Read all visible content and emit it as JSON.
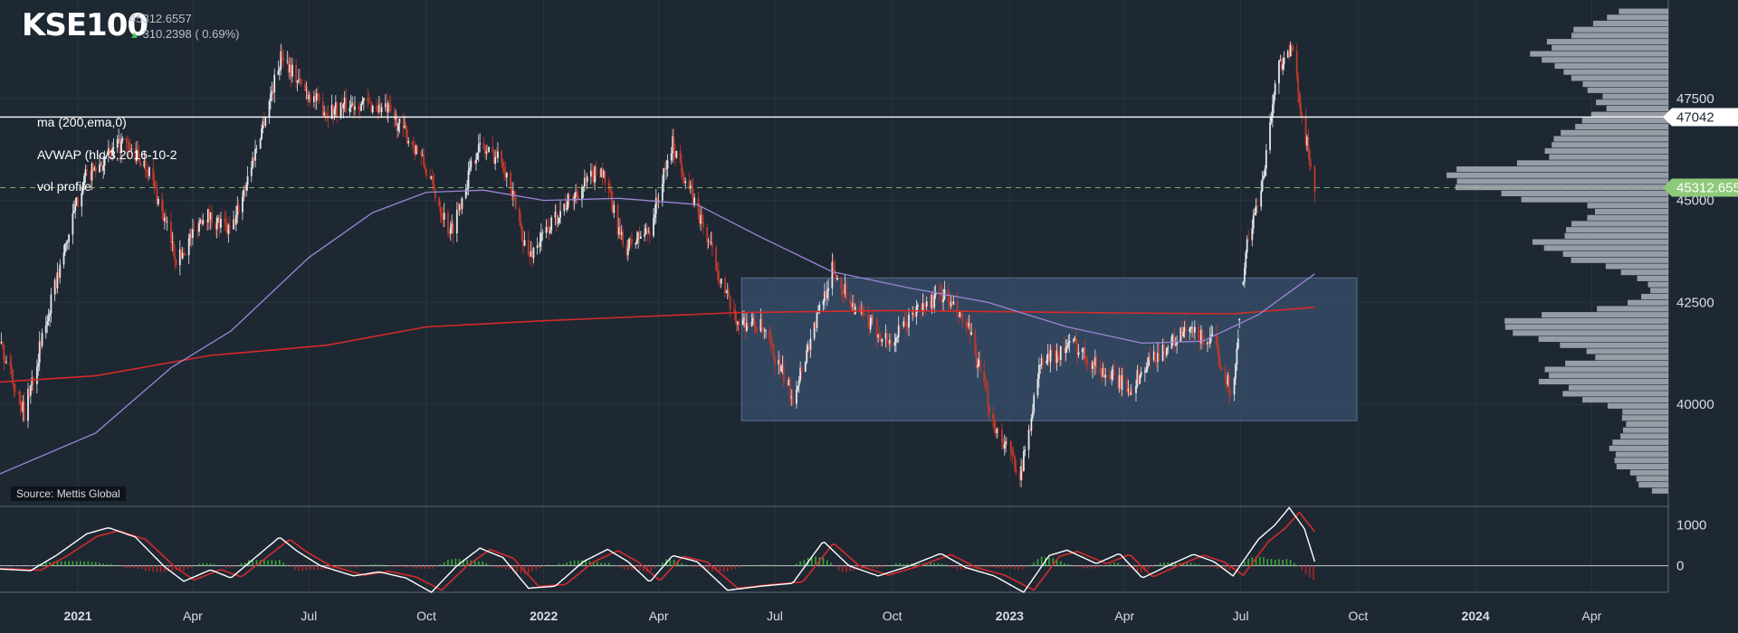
{
  "header": {
    "symbol": "KSE100",
    "last": "45312.6557",
    "change": "310.2398 ( 0.69%)",
    "up_color": "#3fc45a"
  },
  "indicators": [
    "ma (200,ema,0)",
    "AVWAP (hlc/3,2016-10-2",
    "vol profile"
  ],
  "source": "Source: Mettis Global",
  "colors": {
    "background": "#1e2833",
    "ma_line": "#d42a2a",
    "avwap_line": "#9b86d6",
    "candle_up": "#e4e8ec",
    "candle_down": "#c0392b",
    "box_fill": "#3a4f6e",
    "price_tag": "#8fc97a"
  },
  "chart_data": {
    "type": "candlestick",
    "x_range": [
      "2020-11-01",
      "2024-05-31"
    ],
    "y_range": [
      37500,
      49800
    ],
    "y_ticks": [
      40000,
      42500,
      45000,
      47500
    ],
    "x_ticks": [
      {
        "label": "2021",
        "date": "2021-01-01",
        "bold": true
      },
      {
        "label": "Apr",
        "date": "2021-04-01"
      },
      {
        "label": "Jul",
        "date": "2021-07-01"
      },
      {
        "label": "Oct",
        "date": "2021-10-01"
      },
      {
        "label": "2022",
        "date": "2022-01-01",
        "bold": true
      },
      {
        "label": "Apr",
        "date": "2022-04-01"
      },
      {
        "label": "Jul",
        "date": "2022-07-01"
      },
      {
        "label": "Oct",
        "date": "2022-10-01"
      },
      {
        "label": "2023",
        "date": "2023-01-01",
        "bold": true
      },
      {
        "label": "Apr",
        "date": "2023-04-01"
      },
      {
        "label": "Jul",
        "date": "2023-07-01"
      },
      {
        "label": "Oct",
        "date": "2023-10-01"
      },
      {
        "label": "2024",
        "date": "2024-01-01",
        "bold": true
      },
      {
        "label": "Apr",
        "date": "2024-04-01"
      }
    ],
    "price_path": [
      [
        "2020-11-01",
        41500
      ],
      [
        "2020-11-20",
        39800
      ],
      [
        "2020-12-15",
        43000
      ],
      [
        "2021-01-05",
        45500
      ],
      [
        "2021-02-05",
        46400
      ],
      [
        "2021-02-25",
        45800
      ],
      [
        "2021-03-20",
        43500
      ],
      [
        "2021-04-10",
        44700
      ],
      [
        "2021-05-01",
        44200
      ],
      [
        "2021-05-20",
        46200
      ],
      [
        "2021-06-10",
        48600
      ],
      [
        "2021-06-25",
        47800
      ],
      [
        "2021-07-15",
        47200
      ],
      [
        "2021-08-10",
        47400
      ],
      [
        "2021-09-01",
        47200
      ],
      [
        "2021-09-25",
        46200
      ],
      [
        "2021-10-20",
        44200
      ],
      [
        "2021-11-10",
        46300
      ],
      [
        "2021-11-30",
        46000
      ],
      [
        "2021-12-20",
        43600
      ],
      [
        "2022-01-15",
        44800
      ],
      [
        "2022-02-15",
        45800
      ],
      [
        "2022-03-05",
        43800
      ],
      [
        "2022-03-25",
        44300
      ],
      [
        "2022-04-12",
        46400
      ],
      [
        "2022-05-10",
        44000
      ],
      [
        "2022-05-30",
        42100
      ],
      [
        "2022-06-20",
        41900
      ],
      [
        "2022-07-15",
        40200
      ],
      [
        "2022-08-15",
        43300
      ],
      [
        "2022-09-05",
        42200
      ],
      [
        "2022-09-30",
        41500
      ],
      [
        "2022-10-20",
        42300
      ],
      [
        "2022-11-10",
        42700
      ],
      [
        "2022-11-30",
        41800
      ],
      [
        "2022-12-20",
        39500
      ],
      [
        "2023-01-10",
        38300
      ],
      [
        "2023-01-25",
        41000
      ],
      [
        "2023-02-20",
        41500
      ],
      [
        "2023-03-15",
        40800
      ],
      [
        "2023-04-05",
        40400
      ],
      [
        "2023-04-25",
        41200
      ],
      [
        "2023-05-20",
        41800
      ],
      [
        "2023-06-10",
        41500
      ],
      [
        "2023-06-25",
        40200
      ],
      [
        "2023-07-05",
        43800
      ],
      [
        "2023-07-18",
        45500
      ],
      [
        "2023-07-30",
        48300
      ],
      [
        "2023-08-10",
        48700
      ],
      [
        "2023-08-20",
        46700
      ],
      [
        "2023-08-28",
        45300
      ]
    ],
    "gap": {
      "start": "2023-06-29",
      "end": "2023-07-03"
    },
    "ma": {
      "label": "ma (200,ema,0)",
      "path": [
        [
          "2020-11-01",
          40550
        ],
        [
          "2021-01-15",
          40700
        ],
        [
          "2021-04-15",
          41200
        ],
        [
          "2021-07-15",
          41450
        ],
        [
          "2021-10-01",
          41900
        ],
        [
          "2022-01-01",
          42050
        ],
        [
          "2022-06-01",
          42250
        ],
        [
          "2022-10-01",
          42300
        ],
        [
          "2023-03-01",
          42250
        ],
        [
          "2023-06-25",
          42220
        ],
        [
          "2023-08-28",
          42380
        ]
      ]
    },
    "avwap": {
      "label": "AVWAP (hlc/3,2016-10-2",
      "path": [
        [
          "2020-11-01",
          38300
        ],
        [
          "2021-01-15",
          39300
        ],
        [
          "2021-03-15",
          40900
        ],
        [
          "2021-05-01",
          41800
        ],
        [
          "2021-07-01",
          43600
        ],
        [
          "2021-08-20",
          44700
        ],
        [
          "2021-10-01",
          45200
        ],
        [
          "2021-11-15",
          45250
        ],
        [
          "2022-01-01",
          45000
        ],
        [
          "2022-03-01",
          45050
        ],
        [
          "2022-05-01",
          44900
        ],
        [
          "2022-06-20",
          44100
        ],
        [
          "2022-08-15",
          43250
        ],
        [
          "2022-10-15",
          42850
        ],
        [
          "2022-12-15",
          42500
        ],
        [
          "2023-02-15",
          41900
        ],
        [
          "2023-04-15",
          41500
        ],
        [
          "2023-06-01",
          41550
        ],
        [
          "2023-07-15",
          42200
        ],
        [
          "2023-08-28",
          43200
        ]
      ]
    },
    "range_box": {
      "x_start": "2022-06-05",
      "x_end": "2023-09-30",
      "y_low": 39600,
      "y_high": 43100
    },
    "horizontal_line": {
      "value": 47042,
      "label": "47042"
    },
    "last_price": {
      "value": 45312.655,
      "label": "45312.655"
    },
    "volume_profile": {
      "price_low": 37800,
      "price_high": 49700,
      "rows": 80,
      "poc_value": 45400,
      "max_volume": 1.0
    },
    "oscillator": {
      "y_range": [
        -650,
        1450
      ],
      "y_ticks": [
        0,
        1000
      ],
      "path": [
        [
          "2020-11-01",
          -80
        ],
        [
          "2020-11-25",
          -120
        ],
        [
          "2020-12-15",
          250
        ],
        [
          "2021-01-08",
          780
        ],
        [
          "2021-01-25",
          930
        ],
        [
          "2021-02-15",
          700
        ],
        [
          "2021-03-10",
          -30
        ],
        [
          "2021-03-25",
          -380
        ],
        [
          "2021-04-15",
          -100
        ],
        [
          "2021-05-01",
          -300
        ],
        [
          "2021-05-20",
          200
        ],
        [
          "2021-06-08",
          700
        ],
        [
          "2021-06-22",
          350
        ],
        [
          "2021-07-10",
          0
        ],
        [
          "2021-08-05",
          -250
        ],
        [
          "2021-08-25",
          -150
        ],
        [
          "2021-09-15",
          -300
        ],
        [
          "2021-10-05",
          -650
        ],
        [
          "2021-10-25",
          0
        ],
        [
          "2021-11-12",
          430
        ],
        [
          "2021-11-30",
          200
        ],
        [
          "2021-12-20",
          -550
        ],
        [
          "2022-01-10",
          -500
        ],
        [
          "2022-02-01",
          100
        ],
        [
          "2022-02-20",
          400
        ],
        [
          "2022-03-08",
          100
        ],
        [
          "2022-03-25",
          -400
        ],
        [
          "2022-04-12",
          250
        ],
        [
          "2022-05-01",
          100
        ],
        [
          "2022-05-25",
          -600
        ],
        [
          "2022-06-20",
          -500
        ],
        [
          "2022-07-15",
          -430
        ],
        [
          "2022-08-08",
          600
        ],
        [
          "2022-08-28",
          0
        ],
        [
          "2022-09-20",
          -250
        ],
        [
          "2022-10-15",
          0
        ],
        [
          "2022-11-08",
          300
        ],
        [
          "2022-11-28",
          -50
        ],
        [
          "2022-12-20",
          -250
        ],
        [
          "2023-01-12",
          -650
        ],
        [
          "2023-02-01",
          250
        ],
        [
          "2023-02-15",
          380
        ],
        [
          "2023-03-10",
          50
        ],
        [
          "2023-03-28",
          300
        ],
        [
          "2023-04-15",
          -300
        ],
        [
          "2023-05-05",
          0
        ],
        [
          "2023-05-25",
          280
        ],
        [
          "2023-06-10",
          100
        ],
        [
          "2023-06-25",
          -250
        ],
        [
          "2023-07-15",
          650
        ],
        [
          "2023-07-28",
          1000
        ],
        [
          "2023-08-08",
          1420
        ],
        [
          "2023-08-20",
          900
        ],
        [
          "2023-08-28",
          100
        ]
      ]
    }
  }
}
